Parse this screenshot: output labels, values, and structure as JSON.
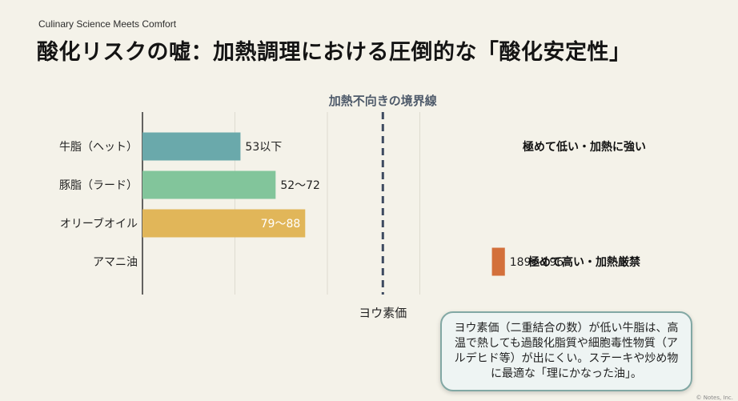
{
  "header": {
    "kicker": "Culinary Science Meets Comfort",
    "title": "酸化リスクの嘘：加熱調理における圧倒的な「酸化安定性」"
  },
  "chart_data": {
    "type": "bar",
    "orientation": "horizontal",
    "categories": [
      "牛脂（ヘット）",
      "豚脂（ラード）",
      "オリーブオイル",
      "アマニ油"
    ],
    "series": [
      {
        "values": [
          [
            0,
            53
          ],
          [
            0,
            72
          ],
          [
            0,
            88
          ],
          [
            189,
            196
          ]
        ],
        "labels": [
          "53以下",
          "52〜72",
          "79〜88",
          "189〜196"
        ],
        "colors": [
          "#6aa9ab",
          "#82c59b",
          "#e1b659",
          "#d3703b"
        ]
      }
    ],
    "xlabel": "ヨウ素価",
    "xlim": [
      0,
      200
    ],
    "threshold": {
      "value": 130,
      "label": "加熱不向きの境界線"
    },
    "annotations": [
      "極めて低い・加熱に強い",
      "極めて高い・加熱厳禁"
    ],
    "grid": true,
    "legend": "none"
  },
  "note": {
    "text": "ヨウ素価（二重結合の数）が低い牛脂は、高温で熱しても過酸化脂質や細胞毒性物質（アルデヒド等）が出にくい。ステーキや炒め物に最適な「理にかなった油」。"
  },
  "footer": {
    "corner": "© Notes, Inc."
  }
}
